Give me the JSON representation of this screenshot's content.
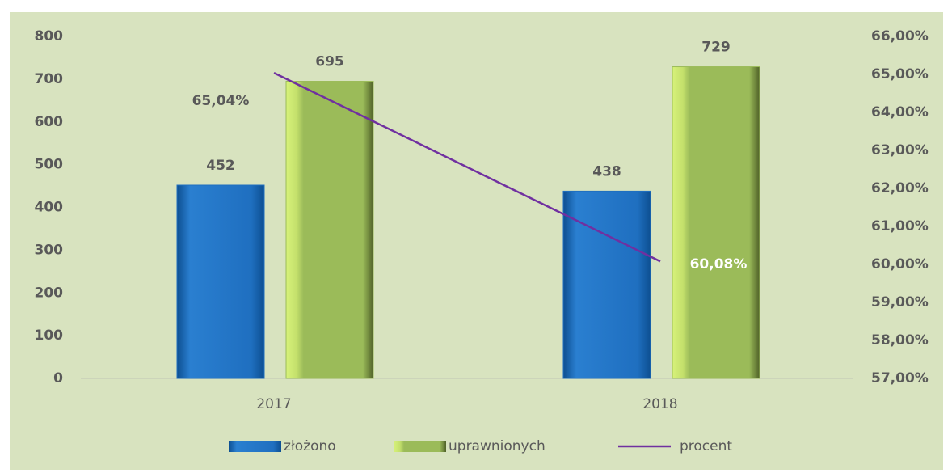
{
  "chart_data": {
    "type": "bar",
    "categories": [
      "2017",
      "2018"
    ],
    "series": [
      {
        "name": "złożono",
        "color": "#1f6fc0",
        "values": [
          452,
          438
        ]
      },
      {
        "name": "uprawnionych",
        "color": "#9bbb59",
        "values": [
          695,
          729
        ]
      },
      {
        "name": "procent",
        "type": "line",
        "axis": "y2",
        "color": "#7030a0",
        "values": [
          65.04,
          60.08
        ],
        "value_labels": [
          "65,04%",
          "60,08%"
        ]
      }
    ],
    "ylim": [
      0,
      800
    ],
    "yticks": [
      0,
      100,
      200,
      300,
      400,
      500,
      600,
      700,
      800
    ],
    "y2lim": [
      57,
      66
    ],
    "y2ticks": [
      {
        "value": 57,
        "label": "57,00%"
      },
      {
        "value": 58,
        "label": "58,00%"
      },
      {
        "value": 59,
        "label": "59,00%"
      },
      {
        "value": 60,
        "label": "60,00%"
      },
      {
        "value": 61,
        "label": "61,00%"
      },
      {
        "value": 62,
        "label": "62,00%"
      },
      {
        "value": 63,
        "label": "63,00%"
      },
      {
        "value": 64,
        "label": "64,00%"
      },
      {
        "value": 65,
        "label": "65,00%"
      },
      {
        "value": 66,
        "label": "66,00%"
      }
    ],
    "grid": false,
    "legend": "bottom"
  }
}
